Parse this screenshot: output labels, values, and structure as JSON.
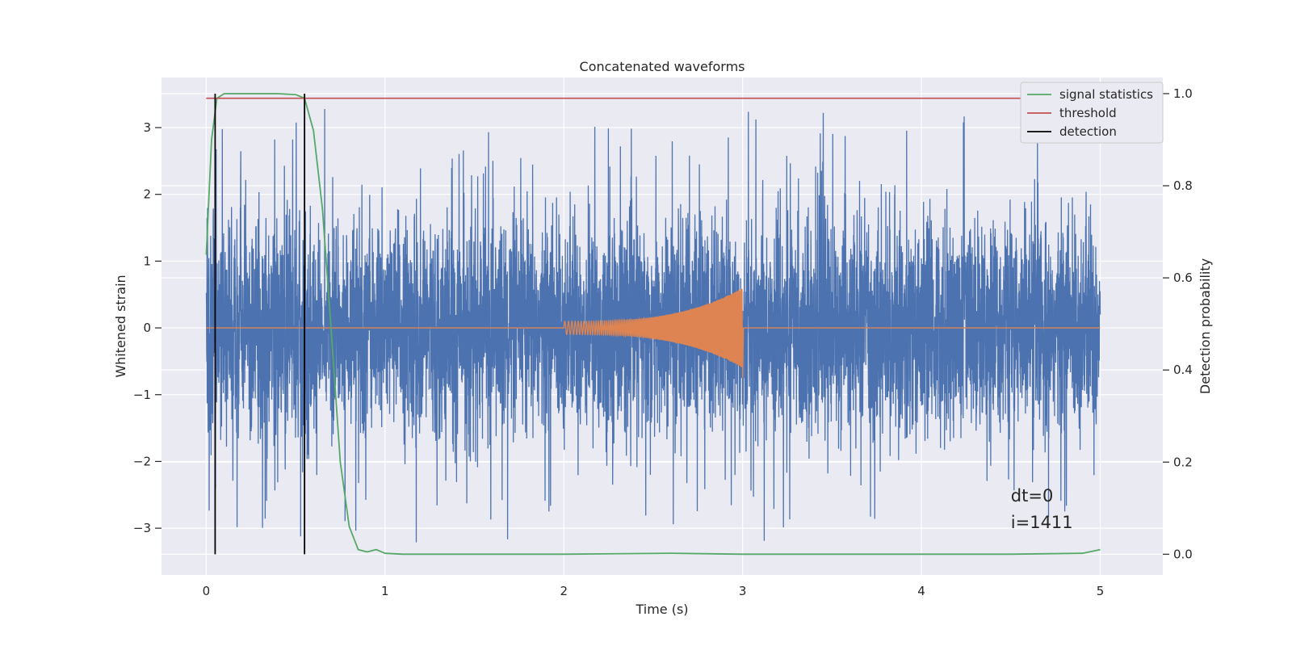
{
  "chart_data": {
    "type": "line",
    "title": "Concatenated waveforms",
    "xlabel": "Time (s)",
    "ylabel": "Whitened strain",
    "y2label": "Detection probability",
    "xlim": [
      -0.25,
      5.35
    ],
    "ylim": [
      -3.7,
      3.75
    ],
    "y2lim": [
      -0.045,
      1.035
    ],
    "xticks": [
      0,
      1,
      2,
      3,
      4,
      5
    ],
    "yticks": [
      -3,
      -2,
      -1,
      0,
      1,
      2,
      3
    ],
    "y2ticks": [
      0.0,
      0.2,
      0.4,
      0.6,
      0.8,
      1.0
    ],
    "ytick_labels": [
      "−3",
      "−2",
      "−1",
      "0",
      "1",
      "2",
      "3"
    ],
    "y2tick_labels": [
      "0.0",
      "0.2",
      "0.4",
      "0.6",
      "0.8",
      "1.0"
    ],
    "grid": true,
    "legend_position": "upper right",
    "series": [
      {
        "name": "",
        "role": "whitened-noise",
        "color": "#4c72b0",
        "x_range": [
          0,
          5
        ],
        "typical_amplitude": 1.0,
        "max_peak": 3.35,
        "min_peak": -3.35
      },
      {
        "name": "",
        "role": "injected-chirp",
        "color": "#dd8452",
        "x_range": [
          0,
          5
        ],
        "chirp_start": 2.0,
        "chirp_end": 3.0,
        "chirp_start_amplitude": 0.1,
        "chirp_peak_amplitude": 0.6
      },
      {
        "name": "signal statistics",
        "axis": "right",
        "color": "#55a868",
        "x": [
          0,
          0.03,
          0.06,
          0.1,
          0.2,
          0.4,
          0.5,
          0.55,
          0.6,
          0.65,
          0.7,
          0.75,
          0.8,
          0.85,
          0.9,
          0.95,
          1.0,
          1.1,
          2.0,
          2.6,
          3.0,
          4.5,
          4.9,
          5.0
        ],
        "values": [
          0.65,
          0.9,
          0.99,
          1.0,
          1.0,
          1.0,
          0.998,
          0.99,
          0.92,
          0.75,
          0.48,
          0.2,
          0.06,
          0.01,
          0.005,
          0.01,
          0.002,
          0.0,
          0.0,
          0.002,
          0.0,
          0.0,
          0.002,
          0.01
        ]
      },
      {
        "name": "threshold",
        "axis": "right",
        "color": "#c44e52",
        "x": [
          0,
          5
        ],
        "values": [
          0.99,
          0.99
        ]
      },
      {
        "name": "detection",
        "axis": "right",
        "color": "#000000",
        "type": "vlines",
        "x": [
          0.05,
          0.55
        ],
        "ymin": 0.0,
        "ymax": 1.0
      }
    ],
    "annotations": [
      {
        "text": "dt=0",
        "x": 4.5,
        "y": -2.6
      },
      {
        "text": "i=1411",
        "x": 4.5,
        "y": -3.0
      }
    ]
  }
}
